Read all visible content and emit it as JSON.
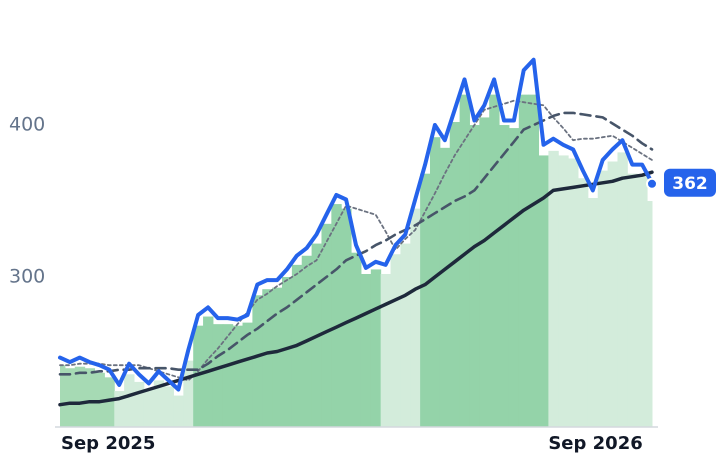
{
  "chart_data": {
    "type": "line",
    "categories": [
      "Sep 2025",
      null,
      null,
      null,
      null,
      null,
      null,
      null,
      null,
      null,
      null,
      null,
      null,
      null,
      null,
      null,
      null,
      null,
      null,
      null,
      null,
      null,
      null,
      null,
      null,
      null,
      null,
      null,
      null,
      null,
      null,
      null,
      null,
      null,
      null,
      null,
      null,
      null,
      null,
      null,
      null,
      null,
      null,
      null,
      null,
      null,
      null,
      null,
      null,
      null,
      "Sep 2026",
      null,
      null,
      null,
      null,
      null,
      null,
      null,
      null,
      null,
      null
    ],
    "ylim": [
      201,
      482
    ],
    "yticks": [
      300,
      400
    ],
    "series": [
      {
        "style": "bars",
        "colors": [
          "#a6dab4",
          "#a6dab4",
          "#a6dab4",
          "#a6dab4",
          "#a6dab4",
          "#a6dab4",
          "#d3ecdb",
          "#d3ecdb",
          "#d3ecdb",
          "#d3ecdb",
          "#d3ecdb",
          "#d3ecdb",
          "#d3ecdb",
          "#d3ecdb",
          "#94d3a9",
          "#94d3a9",
          "#94d3a9",
          "#94d3a9",
          "#94d3a9",
          "#94d3a9",
          "#94d3a9",
          "#94d3a9",
          "#94d3a9",
          "#94d3a9",
          "#94d3a9",
          "#94d3a9",
          "#94d3a9",
          "#94d3a9",
          "#94d3a9",
          "#94d3a9",
          "#94d3a9",
          "#94d3a9",
          "#94d3a9",
          "#d3ecdb",
          "#d3ecdb",
          "#d3ecdb",
          "#d3ecdb",
          "#94d3a9",
          "#94d3a9",
          "#94d3a9",
          "#94d3a9",
          "#94d3a9",
          "#94d3a9",
          "#94d3a9",
          "#94d3a9",
          "#94d3a9",
          "#94d3a9",
          "#94d3a9",
          "#94d3a9",
          "#94d3a9",
          "#d3ecdb",
          "#d3ecdb",
          "#d3ecdb",
          "#d3ecdb",
          "#d3ecdb",
          "#d3ecdb",
          "#d3ecdb",
          "#d3ecdb",
          "#d3ecdb",
          "#d3ecdb",
          "#d3ecdb"
        ],
        "values": [
          242,
          240,
          241,
          240,
          237,
          234,
          225,
          236,
          231,
          226,
          232,
          228,
          222,
          245,
          268,
          274,
          269,
          269,
          268,
          270,
          288,
          292,
          293,
          300,
          308,
          314,
          322,
          335,
          348,
          345,
          316,
          302,
          305,
          302,
          315,
          322,
          345,
          368,
          392,
          385,
          402,
          420,
          400,
          405,
          420,
          400,
          398,
          420,
          420,
          380,
          383,
          380,
          378,
          365,
          352,
          370,
          376,
          382,
          368,
          367,
          350
        ]
      },
      {
        "style": "dotted",
        "color": "#6b7280",
        "values": [
          242,
          242,
          243,
          243,
          243,
          242,
          242,
          242,
          242,
          240,
          238,
          236,
          234,
          232,
          238,
          246,
          253,
          261,
          269,
          277,
          285,
          289,
          294,
          298,
          302,
          307,
          311,
          323,
          335,
          347,
          345,
          343,
          341,
          330,
          318,
          325,
          331,
          343,
          355,
          368,
          380,
          390,
          400,
          410,
          412,
          414,
          416,
          415,
          414,
          413,
          405,
          398,
          390,
          391,
          391,
          392,
          393,
          389,
          385,
          381,
          377
        ]
      },
      {
        "style": "dashed",
        "color": "#475569",
        "values": [
          236,
          236,
          237,
          237,
          238,
          238,
          239,
          239,
          240,
          240,
          240,
          240,
          239,
          239,
          239,
          243,
          248,
          252,
          257,
          262,
          266,
          271,
          276,
          280,
          285,
          290,
          295,
          300,
          305,
          311,
          314,
          317,
          321,
          324,
          328,
          331,
          334,
          338,
          342,
          346,
          350,
          353,
          357,
          365,
          373,
          381,
          389,
          397,
          400,
          403,
          406,
          408,
          408,
          407,
          406,
          405,
          401,
          397,
          393,
          388,
          384
        ]
      },
      {
        "style": "solid",
        "color": "#1e293b",
        "values": [
          216,
          217,
          217,
          218,
          218,
          219,
          220,
          222,
          224,
          226,
          228,
          230,
          232,
          234,
          236,
          238,
          240,
          242,
          244,
          246,
          248,
          250,
          251,
          253,
          255,
          258,
          261,
          264,
          267,
          270,
          273,
          276,
          279,
          282,
          285,
          288,
          292,
          295,
          300,
          305,
          310,
          315,
          320,
          324,
          329,
          334,
          339,
          344,
          348,
          352,
          357,
          358,
          359,
          360,
          361,
          362,
          363,
          365,
          366,
          367,
          369
        ]
      },
      {
        "style": "price",
        "color": "#2563eb",
        "values": [
          247,
          244,
          247,
          244,
          242,
          239,
          229,
          243,
          236,
          230,
          238,
          232,
          226,
          252,
          275,
          280,
          273,
          273,
          272,
          275,
          295,
          298,
          298,
          305,
          314,
          319,
          328,
          341,
          354,
          351,
          321,
          306,
          310,
          308,
          321,
          328,
          351,
          374,
          400,
          390,
          410,
          430,
          403,
          413,
          430,
          403,
          403,
          436,
          443,
          387,
          391,
          387,
          384,
          370,
          357,
          377,
          384,
          390,
          374,
          374,
          362
        ]
      }
    ]
  }
}
